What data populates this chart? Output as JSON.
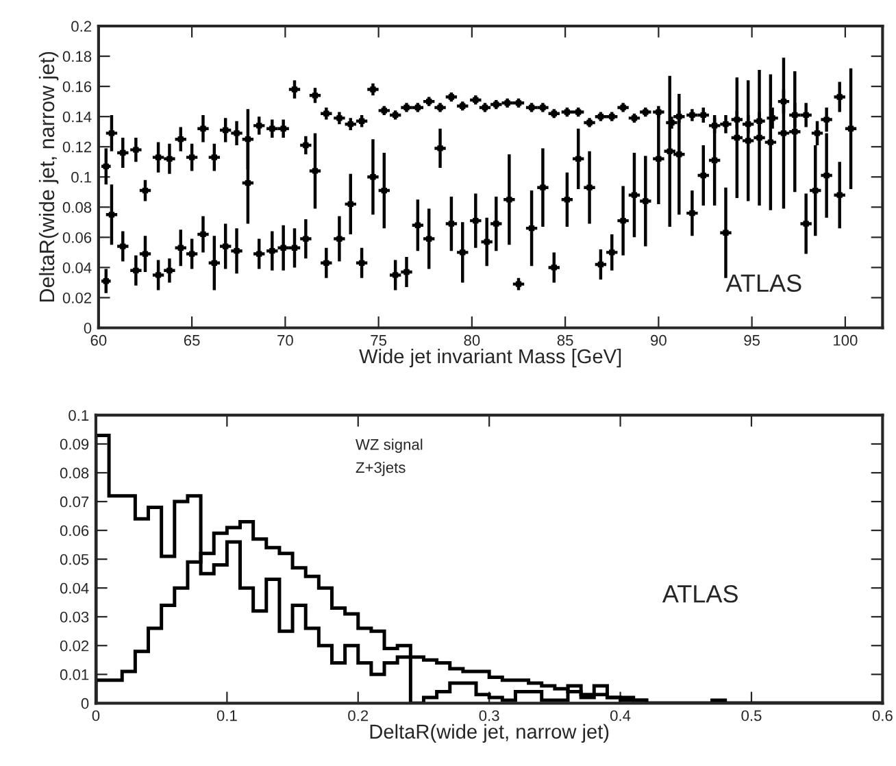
{
  "chart_data": [
    {
      "type": "scatter",
      "xlabel": "Wide jet invariant Mass [GeV]",
      "ylabel": "DeltaR(wide jet, narrow jet)",
      "xlim": [
        60,
        102
      ],
      "ylim": [
        0,
        0.2
      ],
      "xticks": [
        60,
        65,
        70,
        75,
        80,
        85,
        90,
        95,
        100
      ],
      "yticks": [
        0,
        0.02,
        0.04,
        0.06,
        0.08,
        0.1,
        0.12,
        0.14,
        0.16,
        0.18,
        0.2
      ],
      "marker": "square",
      "grid": false,
      "annotations": [
        "ATLAS"
      ],
      "series": [
        {
          "color": "#000000",
          "x": [
            60.4,
            60.7,
            61.3,
            62.0,
            62.5,
            63.2,
            63.8,
            64.4,
            65.0,
            65.6,
            66.2,
            66.8,
            67.4,
            68.0,
            68.6,
            69.3,
            69.9,
            70.5,
            71.1,
            71.6,
            72.2,
            72.9,
            73.5,
            74.1,
            74.7,
            75.3,
            75.9,
            76.5,
            77.1,
            77.7,
            78.3,
            78.9,
            79.5,
            80.2,
            80.7,
            81.3,
            81.9,
            82.5,
            83.2,
            83.8,
            84.4,
            85.1,
            85.7,
            86.3,
            86.9,
            87.5,
            88.1,
            88.7,
            89.3,
            90.0,
            90.7,
            91.1,
            91.8,
            92.4,
            93.0,
            93.6,
            94.2,
            94.8,
            95.4,
            96.1,
            96.7,
            97.3,
            97.9,
            98.5,
            99.0,
            99.7
          ],
          "values": [
            0.107,
            0.129,
            0.116,
            0.118,
            0.091,
            0.113,
            0.112,
            0.125,
            0.113,
            0.132,
            0.113,
            0.131,
            0.129,
            0.125,
            0.134,
            0.132,
            0.132,
            0.158,
            0.121,
            0.154,
            0.142,
            0.139,
            0.135,
            0.137,
            0.158,
            0.144,
            0.141,
            0.146,
            0.146,
            0.15,
            0.146,
            0.153,
            0.147,
            0.151,
            0.146,
            0.148,
            0.149,
            0.149,
            0.146,
            0.146,
            0.142,
            0.143,
            0.143,
            0.136,
            0.14,
            0.14,
            0.146,
            0.139,
            0.143,
            0.143,
            0.136,
            0.14,
            0.141,
            0.141,
            0.134,
            0.135,
            0.138,
            0.135,
            0.137,
            0.139,
            0.15,
            0.141,
            0.141,
            0.129,
            0.138,
            0.153
          ],
          "errors": [
            0.012,
            0.012,
            0.01,
            0.008,
            0.007,
            0.01,
            0.01,
            0.008,
            0.009,
            0.009,
            0.009,
            0.008,
            0.008,
            0.02,
            0.006,
            0.006,
            0.006,
            0.006,
            0.006,
            0.005,
            0.004,
            0.004,
            0.004,
            0.004,
            0.004,
            0.003,
            0.003,
            0.003,
            0.003,
            0.003,
            0.003,
            0.003,
            0.003,
            0.003,
            0.003,
            0.003,
            0.003,
            0.003,
            0.003,
            0.003,
            0.003,
            0.003,
            0.003,
            0.003,
            0.003,
            0.003,
            0.003,
            0.003,
            0.003,
            0.004,
            0.004,
            0.004,
            0.004,
            0.005,
            0.005,
            0.006,
            0.006,
            0.006,
            0.006,
            0.007,
            0.008,
            0.008,
            0.008,
            0.008,
            0.008,
            0.01
          ],
          "xerrors": [
            0.25,
            0.3,
            0.3,
            0.3,
            0.3,
            0.3,
            0.3,
            0.3,
            0.3,
            0.3,
            0.3,
            0.3,
            0.3,
            0.3,
            0.3,
            0.3,
            0.3,
            0.3,
            0.3,
            0.3,
            0.3,
            0.3,
            0.3,
            0.3,
            0.3,
            0.3,
            0.3,
            0.3,
            0.3,
            0.3,
            0.3,
            0.3,
            0.3,
            0.3,
            0.3,
            0.3,
            0.3,
            0.3,
            0.3,
            0.3,
            0.3,
            0.3,
            0.3,
            0.3,
            0.3,
            0.3,
            0.3,
            0.3,
            0.3,
            0.3,
            0.3,
            0.3,
            0.3,
            0.3,
            0.3,
            0.3,
            0.3,
            0.3,
            0.3,
            0.3,
            0.3,
            0.3,
            0.3,
            0.3,
            0.3,
            0.3
          ]
        },
        {
          "color": "#000000",
          "x": [
            60.4,
            60.7,
            61.3,
            62.0,
            62.5,
            63.2,
            63.8,
            64.4,
            65.0,
            65.6,
            66.2,
            66.8,
            67.4,
            68.0,
            68.6,
            69.3,
            69.9,
            70.5,
            71.1,
            71.6,
            72.2,
            72.9,
            73.5,
            74.1,
            74.7,
            75.3,
            75.9,
            76.5,
            77.1,
            77.7,
            78.3,
            78.9,
            79.5,
            80.2,
            80.8,
            81.3,
            82.0,
            82.5,
            83.2,
            83.8,
            84.4,
            85.1,
            85.7,
            86.3,
            86.9,
            87.5,
            88.1,
            88.7,
            89.3,
            90.0,
            90.6,
            91.1,
            91.8,
            92.4,
            93.0,
            93.6,
            94.2,
            94.8,
            95.4,
            96.0,
            96.7,
            97.3,
            97.9,
            98.4,
            99.0,
            99.7,
            100.3
          ],
          "values": [
            0.031,
            0.075,
            0.054,
            0.038,
            0.049,
            0.035,
            0.038,
            0.053,
            0.049,
            0.062,
            0.043,
            0.054,
            0.051,
            0.096,
            0.049,
            0.051,
            0.053,
            0.053,
            0.059,
            0.104,
            0.043,
            0.059,
            0.082,
            0.043,
            0.1,
            0.091,
            0.035,
            0.037,
            0.068,
            0.059,
            0.119,
            0.069,
            0.05,
            0.071,
            0.057,
            0.069,
            0.085,
            0.029,
            0.066,
            0.093,
            0.04,
            0.085,
            0.112,
            0.093,
            0.042,
            0.05,
            0.071,
            0.088,
            0.084,
            0.112,
            0.117,
            0.115,
            0.076,
            0.101,
            0.111,
            0.063,
            0.126,
            0.124,
            0.126,
            0.123,
            0.129,
            0.13,
            0.069,
            0.091,
            0.101,
            0.088,
            0.132
          ],
          "errors": [
            0.008,
            0.02,
            0.01,
            0.01,
            0.012,
            0.01,
            0.008,
            0.012,
            0.01,
            0.012,
            0.018,
            0.015,
            0.015,
            0.027,
            0.01,
            0.013,
            0.015,
            0.013,
            0.013,
            0.025,
            0.01,
            0.015,
            0.02,
            0.01,
            0.025,
            0.025,
            0.01,
            0.01,
            0.017,
            0.02,
            0.013,
            0.018,
            0.02,
            0.018,
            0.016,
            0.018,
            0.03,
            0.004,
            0.025,
            0.026,
            0.01,
            0.018,
            0.02,
            0.024,
            0.01,
            0.012,
            0.023,
            0.028,
            0.03,
            0.03,
            0.05,
            0.04,
            0.015,
            0.02,
            0.03,
            0.03,
            0.04,
            0.04,
            0.045,
            0.045,
            0.05,
            0.04,
            0.02,
            0.03,
            0.028,
            0.022,
            0.04
          ],
          "xerrors": [
            0.25,
            0.3,
            0.3,
            0.3,
            0.3,
            0.3,
            0.3,
            0.3,
            0.3,
            0.3,
            0.3,
            0.3,
            0.3,
            0.3,
            0.3,
            0.3,
            0.3,
            0.3,
            0.3,
            0.3,
            0.3,
            0.3,
            0.3,
            0.3,
            0.3,
            0.3,
            0.3,
            0.3,
            0.3,
            0.3,
            0.3,
            0.3,
            0.3,
            0.3,
            0.3,
            0.3,
            0.3,
            0.3,
            0.3,
            0.3,
            0.3,
            0.3,
            0.3,
            0.3,
            0.3,
            0.3,
            0.3,
            0.3,
            0.3,
            0.3,
            0.3,
            0.3,
            0.3,
            0.3,
            0.3,
            0.3,
            0.3,
            0.3,
            0.3,
            0.3,
            0.3,
            0.3,
            0.3,
            0.3,
            0.3,
            0.3,
            0.3
          ]
        }
      ]
    },
    {
      "type": "histogram",
      "xlabel": "DeltaR(wide jet, narrow jet)",
      "xlim": [
        0,
        0.6
      ],
      "ylim": [
        0,
        0.1
      ],
      "xticks": [
        0,
        0.1,
        0.2,
        0.3,
        0.4,
        0.5,
        0.6
      ],
      "yticks": [
        0,
        0.01,
        0.02,
        0.03,
        0.04,
        0.05,
        0.06,
        0.07,
        0.08,
        0.09,
        0.1
      ],
      "grid": false,
      "annotations": [
        "WZ signal",
        "Z+3jets",
        "ATLAS"
      ],
      "bins": [
        0,
        0.01,
        0.02,
        0.03,
        0.04,
        0.05,
        0.06,
        0.07,
        0.08,
        0.09,
        0.1,
        0.11,
        0.12,
        0.13,
        0.14,
        0.15,
        0.16,
        0.17,
        0.18,
        0.19,
        0.2,
        0.21,
        0.22,
        0.23,
        0.24,
        0.25,
        0.26,
        0.27,
        0.28,
        0.29,
        0.3,
        0.31,
        0.32,
        0.33,
        0.34,
        0.35,
        0.36,
        0.37,
        0.38,
        0.39,
        0.4,
        0.41,
        0.42,
        0.43,
        0.44,
        0.45,
        0.46,
        0.47,
        0.48,
        0.49,
        0.5,
        0.51,
        0.52,
        0.53,
        0.54,
        0.55,
        0.56,
        0.57,
        0.58,
        0.59,
        0.6
      ],
      "series": [
        {
          "color": "#000000",
          "values": [
            0.093,
            0.072,
            0.072,
            0.064,
            0.068,
            0.051,
            0.07,
            0.072,
            0.045,
            0.048,
            0.056,
            0.04,
            0.032,
            0.043,
            0.025,
            0.034,
            0.026,
            0.02,
            0.014,
            0.02,
            0.014,
            0.01,
            0.014,
            0.016,
            0,
            0.002,
            0.004,
            0.007,
            0.007,
            0.003,
            0.002,
            0.001,
            0.004,
            0.004,
            0.001,
            0.001,
            0.006,
            0.002,
            0.006,
            0.002,
            0.002,
            0.001,
            0,
            0,
            0,
            0,
            0,
            0.001,
            0,
            0,
            0,
            0,
            0,
            0,
            0,
            0,
            0,
            0,
            0,
            0
          ]
        },
        {
          "color": "#000000",
          "values": [
            0.008,
            0.008,
            0.011,
            0.018,
            0.026,
            0.034,
            0.04,
            0.049,
            0.052,
            0.059,
            0.061,
            0.063,
            0.057,
            0.054,
            0.052,
            0.047,
            0.044,
            0.04,
            0.033,
            0.031,
            0.026,
            0.025,
            0.019,
            0.02,
            0.016,
            0.015,
            0.014,
            0.012,
            0.011,
            0.011,
            0.009,
            0.008,
            0.008,
            0.007,
            0.006,
            0.005,
            0.004,
            0.003,
            0.003,
            0.002,
            0.001,
            0.001,
            0,
            0,
            0,
            0,
            0,
            0,
            0,
            0,
            0,
            0,
            0,
            0,
            0,
            0,
            0,
            0,
            0,
            0
          ]
        }
      ]
    }
  ]
}
